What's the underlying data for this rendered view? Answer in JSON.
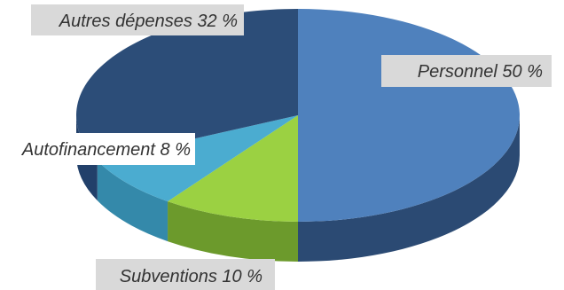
{
  "chart_data": {
    "type": "pie",
    "style": "3d",
    "slices": [
      {
        "label": "Personnel 50 %",
        "value": 50,
        "color": "#4f81bd",
        "side_color": "#2b4a73"
      },
      {
        "label": "Subventions 10 %",
        "value": 10,
        "color": "#9bd142",
        "side_color": "#6c9a2c"
      },
      {
        "label": "Autofinancement 8 %",
        "value": 8,
        "color": "#4bacd0",
        "side_color": "#3489aa"
      },
      {
        "label": "Autres dépenses  32 %",
        "value": 32,
        "color": "#2c4d78",
        "side_color": "#22406a"
      }
    ],
    "label_background": "#d9d9d9"
  }
}
